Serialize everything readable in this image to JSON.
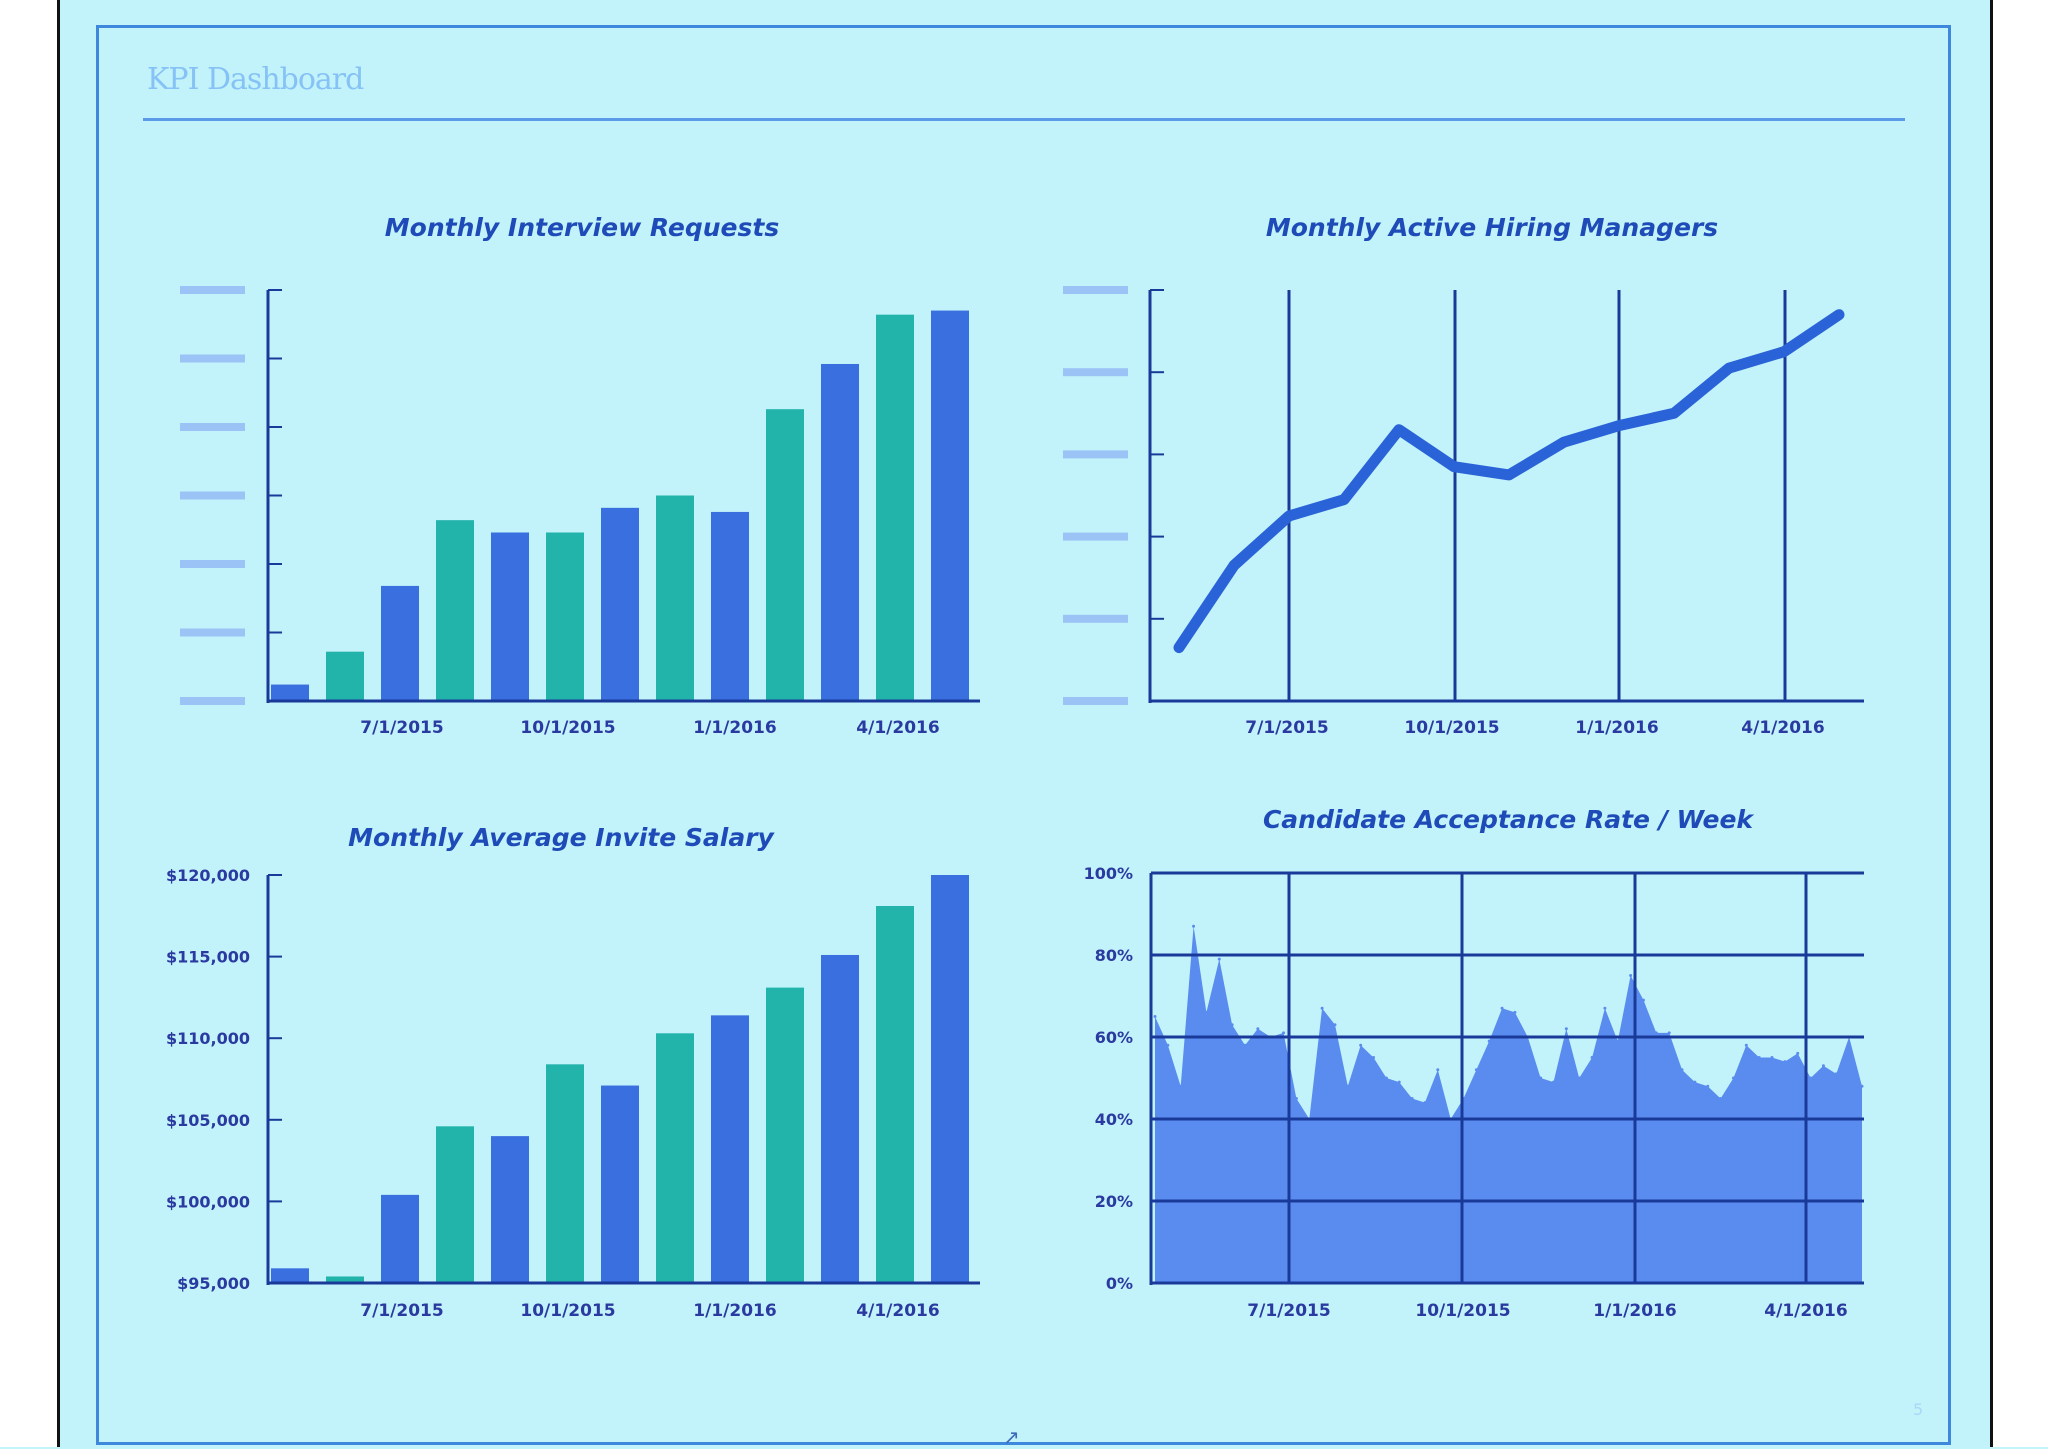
{
  "page": {
    "title": "KPI Dashboard",
    "page_number": "5",
    "bottom_mark": "↗"
  },
  "colors": {
    "background": "#c2f3fa",
    "bar_blue": "#3a6fe0",
    "bar_teal": "#22b3aa",
    "line": "#2a63d8",
    "area": "#5a8cf0",
    "axis": "#1a3a9a",
    "grid": "#1a3a9a",
    "placeholder_tick": "#9cc3f5",
    "title": "#1e4bb8"
  },
  "chart_data": [
    {
      "type": "bar",
      "title": "Monthly Interview Requests",
      "xlabel": "",
      "ylabel": "",
      "x_tick_labels": [
        "7/1/2015",
        "10/1/2015",
        "1/1/2016",
        "4/1/2016"
      ],
      "categories": [
        "5/2015",
        "6/2015",
        "7/2015",
        "8/2015",
        "9/2015",
        "10/2015",
        "11/2015",
        "12/2015",
        "1/2016",
        "2/2016",
        "3/2016",
        "4/2016",
        "5/2016"
      ],
      "values": [
        4,
        12,
        28,
        44,
        41,
        41,
        47,
        50,
        46,
        71,
        82,
        94,
        95
      ],
      "ylim": [
        0,
        100
      ],
      "y_tick_count": 7,
      "y_tick_labels_redacted": true,
      "bar_colors": [
        "blue",
        "teal",
        "blue",
        "teal",
        "blue",
        "teal",
        "blue",
        "teal",
        "blue",
        "teal",
        "blue",
        "teal",
        "blue"
      ]
    },
    {
      "type": "line",
      "title": "Monthly Active Hiring Managers",
      "xlabel": "",
      "ylabel": "",
      "x_tick_labels": [
        "7/1/2015",
        "10/1/2015",
        "1/1/2016",
        "4/1/2016"
      ],
      "x": [
        "5/2015",
        "6/2015",
        "7/2015",
        "8/2015",
        "9/2015",
        "10/2015",
        "11/2015",
        "12/2015",
        "1/2016",
        "2/2016",
        "3/2016",
        "4/2016",
        "5/2016"
      ],
      "values": [
        13,
        33,
        45,
        49,
        66,
        57,
        55,
        63,
        67,
        70,
        81,
        85,
        94
      ],
      "ylim": [
        0,
        100
      ],
      "y_tick_count": 6,
      "y_tick_labels_redacted": true,
      "grid": "vertical"
    },
    {
      "type": "bar",
      "title": "Monthly Average Invite Salary",
      "xlabel": "",
      "ylabel": "",
      "x_tick_labels": [
        "7/1/2015",
        "10/1/2015",
        "1/1/2016",
        "4/1/2016"
      ],
      "y_tick_labels": [
        "$120,000",
        "$115,000",
        "$110,000",
        "$105,000",
        "$100,000",
        "$95,000"
      ],
      "y_ticks": [
        120000,
        115000,
        110000,
        105000,
        100000,
        95000
      ],
      "categories": [
        "5/2015",
        "6/2015",
        "7/2015",
        "8/2015",
        "9/2015",
        "10/2015",
        "11/2015",
        "12/2015",
        "1/2016",
        "2/2016",
        "3/2016",
        "4/2016",
        "5/2016"
      ],
      "values": [
        95900,
        95400,
        100400,
        104600,
        104000,
        108400,
        107100,
        110300,
        111400,
        113100,
        115100,
        118100,
        120000
      ],
      "ylim": [
        95000,
        120000
      ],
      "bar_colors": [
        "blue",
        "teal",
        "blue",
        "teal",
        "blue",
        "teal",
        "blue",
        "teal",
        "blue",
        "teal",
        "blue",
        "teal",
        "blue"
      ]
    },
    {
      "type": "area",
      "title": "Candidate Acceptance Rate / Week",
      "xlabel": "",
      "ylabel": "",
      "x_tick_labels": [
        "7/1/2015",
        "10/1/2015",
        "1/1/2016",
        "4/1/2016"
      ],
      "y_tick_labels": [
        "100%",
        "80%",
        "60%",
        "40%",
        "20%",
        "0%"
      ],
      "y_ticks": [
        100,
        80,
        60,
        40,
        20,
        0
      ],
      "ylim": [
        0,
        100
      ],
      "grid": "both",
      "x_tick_week_index": [
        7,
        20,
        33,
        46
      ],
      "values": [
        65,
        58,
        48,
        87,
        66,
        79,
        63,
        58,
        62,
        60,
        61,
        45,
        40,
        67,
        63,
        48,
        58,
        55,
        50,
        49,
        45,
        44,
        52,
        40,
        45,
        52,
        59,
        67,
        66,
        60,
        50,
        49,
        62,
        50,
        55,
        67,
        59,
        75,
        69,
        61,
        61,
        52,
        49,
        48,
        45,
        50,
        58,
        55,
        55,
        54,
        56,
        50,
        53,
        51,
        60,
        48
      ]
    }
  ]
}
